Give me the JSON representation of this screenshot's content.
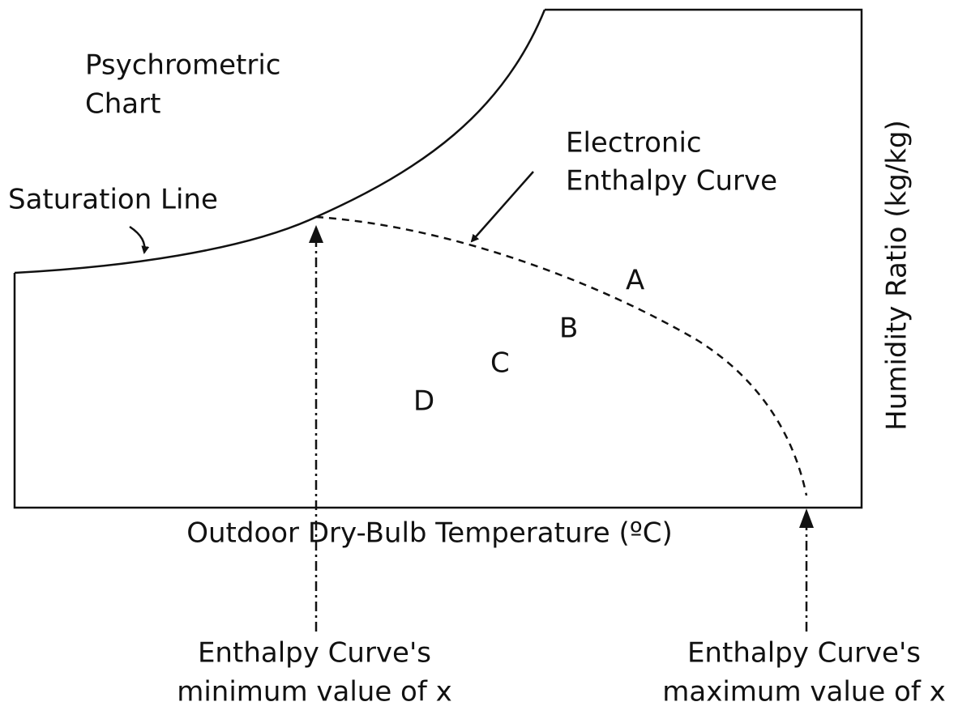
{
  "title": {
    "line1": "Psychrometric",
    "line2": "Chart"
  },
  "saturation_label": "Saturation Line",
  "enthalpy_label": {
    "line1": "Electronic",
    "line2": "Enthalpy Curve"
  },
  "zones": [
    "A",
    "B",
    "C",
    "D"
  ],
  "x_axis_label": "Outdoor Dry-Bulb Temperature (ºC)",
  "y_axis_label": "Humidity Ratio (kg/kg)",
  "min_label": {
    "line1": "Enthalpy Curve's",
    "line2": "minimum value of x"
  },
  "max_label": {
    "line1": "Enthalpy Curve's",
    "line2": "maximum value of x"
  }
}
